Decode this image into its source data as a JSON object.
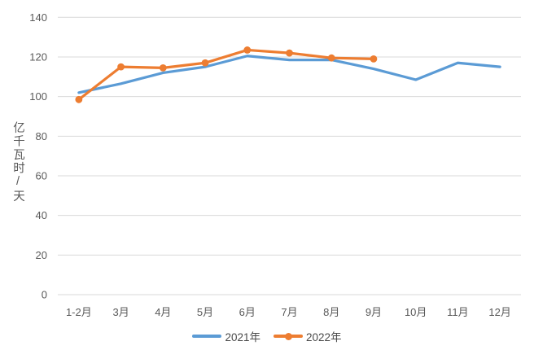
{
  "chart_data": {
    "type": "line",
    "title": "",
    "categories": [
      "1-2月",
      "3月",
      "4月",
      "5月",
      "6月",
      "7月",
      "8月",
      "9月",
      "10月",
      "11月",
      "12月"
    ],
    "series": [
      {
        "name": "2021年",
        "color": "#5B9BD5",
        "marker": false,
        "values": [
          102,
          106.5,
          112,
          115,
          120.5,
          118.5,
          118.5,
          114,
          108.5,
          117,
          115
        ]
      },
      {
        "name": "2022年",
        "color": "#ED7D31",
        "marker": true,
        "values": [
          98.5,
          115,
          114.5,
          117,
          123.5,
          122,
          119.5,
          119
        ]
      }
    ],
    "xlabel": "",
    "ylabel": "亿千瓦时/天",
    "ylim": [
      0,
      140
    ],
    "yticks": [
      0,
      20,
      40,
      60,
      80,
      100,
      120,
      140
    ],
    "grid": true,
    "legend_position": "bottom",
    "colors": {
      "grid": "#D9D9D9",
      "axis_text": "#595959",
      "legend_text": "#4A4A4A",
      "background": "#FFFFFF"
    }
  }
}
